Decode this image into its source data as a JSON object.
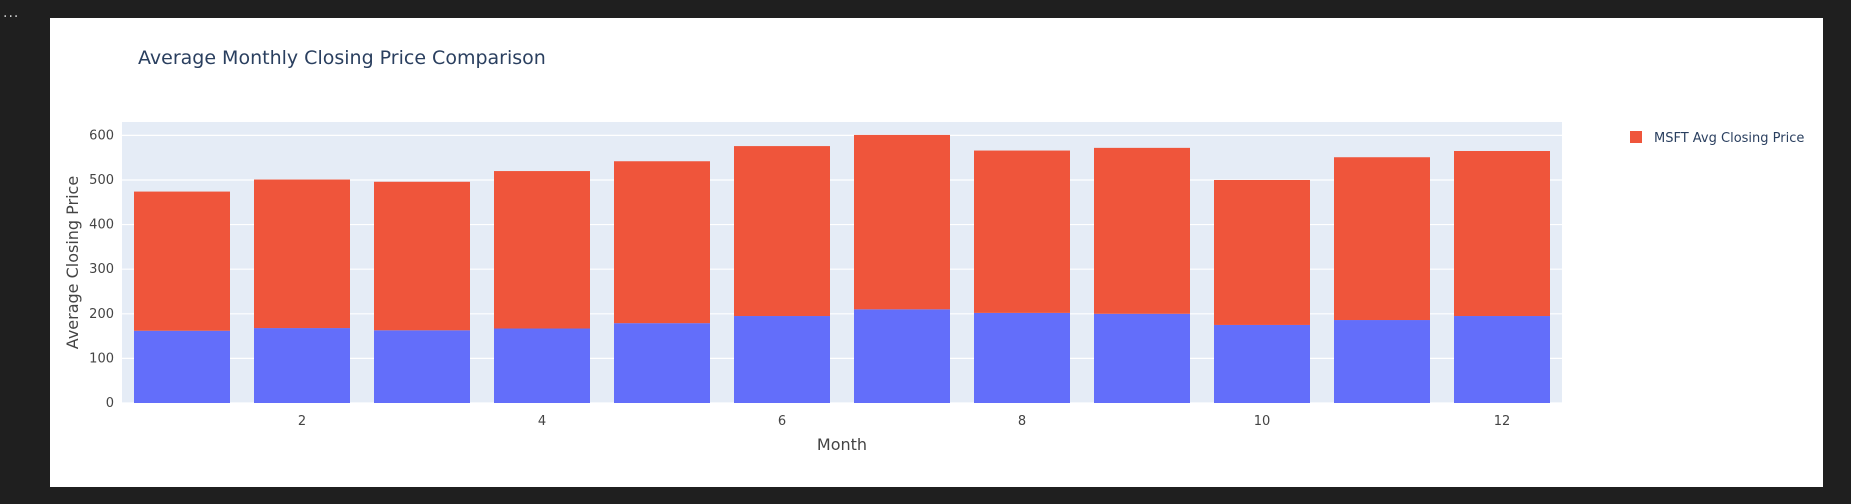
{
  "toolbar": {
    "menu_label": "···"
  },
  "chart_data": {
    "type": "bar",
    "barmode": "stack",
    "title": "Average Monthly Closing Price Comparison",
    "xlabel": "Month",
    "ylabel": "Average Closing Price",
    "categories": [
      1,
      2,
      3,
      4,
      5,
      6,
      7,
      8,
      9,
      10,
      11,
      12
    ],
    "x_tick_labels": [
      "2",
      "4",
      "6",
      "8",
      "10",
      "12"
    ],
    "y_ticks": [
      0,
      100,
      200,
      300,
      400,
      500,
      600
    ],
    "ylim": [
      0,
      630
    ],
    "grid": true,
    "legend_position": "top-right",
    "series": [
      {
        "values": [
          162,
          168,
          163,
          167,
          179,
          195,
          210,
          202,
          200,
          175,
          186,
          195
        ],
        "color": "#636efa"
      },
      {
        "name": "MSFT Avg Closing Price",
        "values": [
          312,
          333,
          333,
          353,
          363,
          381,
          391,
          364,
          372,
          325,
          365,
          370
        ],
        "color": "#ef553b"
      }
    ],
    "plot_background": "#e5ecf6",
    "paper_background": "#ffffff"
  }
}
